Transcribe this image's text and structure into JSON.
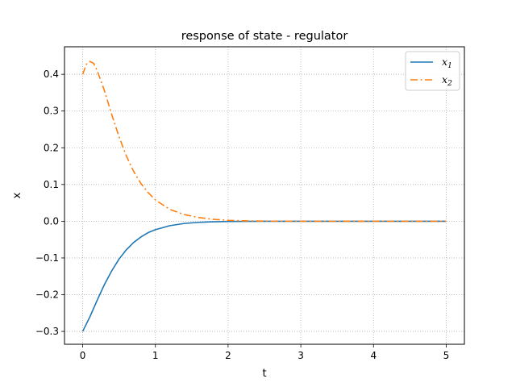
{
  "chart_data": {
    "type": "line",
    "title": "response of state - regulator",
    "xlabel": "t",
    "ylabel": "x",
    "xlim": [
      -0.25,
      5.25
    ],
    "ylim": [
      -0.335,
      0.475
    ],
    "xticks": [
      0,
      1,
      2,
      3,
      4,
      5
    ],
    "xtick_labels": [
      "0",
      "1",
      "2",
      "3",
      "4",
      "5"
    ],
    "yticks": [
      -0.3,
      -0.2,
      -0.1,
      0.0,
      0.1,
      0.2,
      0.3,
      0.4
    ],
    "ytick_labels": [
      "−0.3",
      "−0.2",
      "−0.1",
      "0.0",
      "0.1",
      "0.2",
      "0.3",
      "0.4"
    ],
    "grid": true,
    "legend_position": "top-right",
    "series": [
      {
        "name": "x",
        "name_subscript": "1",
        "color": "#1f77b4",
        "linestyle": "solid",
        "x": [
          0,
          0.1,
          0.2,
          0.3,
          0.4,
          0.5,
          0.6,
          0.7,
          0.8,
          0.9,
          1.0,
          1.2,
          1.4,
          1.6,
          1.8,
          2.0,
          2.2,
          2.5,
          3.0,
          3.5,
          4.0,
          4.5,
          5.0
        ],
        "values": [
          -0.3,
          -0.26,
          -0.215,
          -0.172,
          -0.135,
          -0.103,
          -0.078,
          -0.058,
          -0.043,
          -0.031,
          -0.023,
          -0.012,
          -0.006,
          -0.003,
          -0.0015,
          -0.0007,
          -0.0003,
          -0.0001,
          0,
          0,
          0,
          0,
          0
        ]
      },
      {
        "name": "x",
        "name_subscript": "2",
        "color": "#ff7f0e",
        "linestyle": "dashdot",
        "x": [
          0,
          0.05,
          0.1,
          0.15,
          0.2,
          0.3,
          0.4,
          0.5,
          0.6,
          0.7,
          0.8,
          0.9,
          1.0,
          1.2,
          1.4,
          1.6,
          1.8,
          2.0,
          2.2,
          2.5,
          3.0,
          3.5,
          4.0,
          4.5,
          5.0
        ],
        "values": [
          0.4,
          0.427,
          0.435,
          0.43,
          0.41,
          0.355,
          0.29,
          0.23,
          0.178,
          0.136,
          0.103,
          0.078,
          0.058,
          0.032,
          0.018,
          0.01,
          0.005,
          0.0025,
          0.0012,
          0.0004,
          0,
          0,
          0,
          0,
          0
        ]
      }
    ]
  }
}
